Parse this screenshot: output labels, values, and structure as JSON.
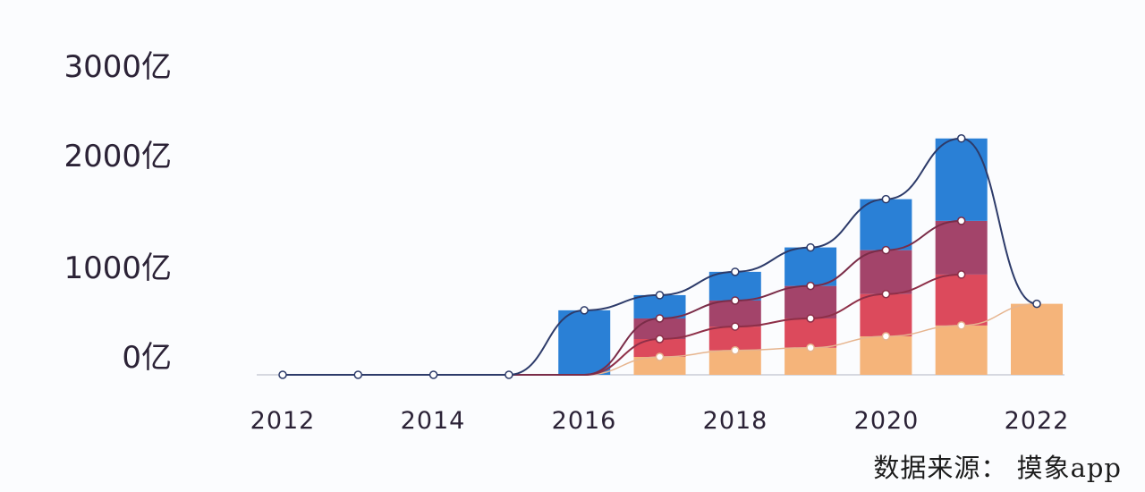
{
  "chart_data": {
    "type": "bar",
    "subtype": "stacked-bar-with-lines",
    "title": "",
    "xlabel": "",
    "ylabel": "",
    "yticks": [
      "0亿",
      "1000亿",
      "2000亿",
      "3000亿"
    ],
    "xticks": [
      "2012",
      "2014",
      "2016",
      "2018",
      "2020",
      "2022"
    ],
    "ylim": [
      0,
      3000
    ],
    "unit": "亿",
    "categories": [
      "2012",
      "2013",
      "2014",
      "2015",
      "2016",
      "2017",
      "2018",
      "2019",
      "2020",
      "2021",
      "2022"
    ],
    "series": [
      {
        "name": "segment-1 (orange, bottom)",
        "color": "#f5b47a",
        "values": [
          0,
          0,
          0,
          0,
          0,
          165,
          225,
          250,
          355,
          455,
          655
        ]
      },
      {
        "name": "segment-2 (red)",
        "color": "#dc4a5c",
        "values": [
          0,
          0,
          0,
          0,
          0,
          165,
          220,
          270,
          390,
          470,
          0
        ]
      },
      {
        "name": "segment-3 (maroon)",
        "color": "#a3446a",
        "values": [
          0,
          0,
          0,
          0,
          0,
          190,
          240,
          300,
          405,
          495,
          0
        ]
      },
      {
        "name": "segment-4 (blue, top)",
        "color": "#2a80d6",
        "values": [
          0,
          0,
          0,
          0,
          595,
          215,
          265,
          355,
          470,
          760,
          0
        ]
      }
    ],
    "totals": [
      0,
      0,
      0,
      0,
      595,
      735,
      950,
      1175,
      1620,
      2180,
      655
    ],
    "grid": false,
    "legend": "none",
    "source": "数据来源：摸象app"
  },
  "axis": {
    "y_labels": [
      "3000亿",
      "2000亿",
      "1000亿",
      "0亿"
    ],
    "x_labels": [
      "2012",
      "2014",
      "2016",
      "2018",
      "2020",
      "2022"
    ]
  },
  "footer": {
    "source": "数据来源： 摸象app"
  }
}
